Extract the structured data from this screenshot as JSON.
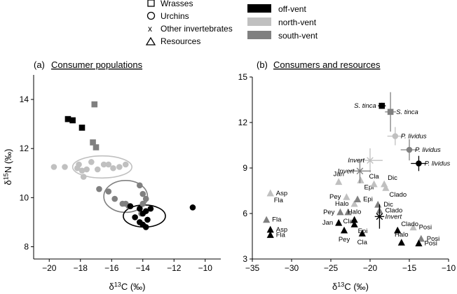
{
  "legend": {
    "shapes": [
      {
        "symbol": "square",
        "label": "Wrasses"
      },
      {
        "symbol": "circle",
        "label": "Urchins"
      },
      {
        "symbol": "cross",
        "label": "Other invertebrates"
      },
      {
        "symbol": "triangle",
        "label": "Resources"
      }
    ],
    "sites": [
      {
        "label": "off-vent",
        "color": "#000000"
      },
      {
        "label": "north-vent",
        "color": "#c0c0c0"
      },
      {
        "label": "south-vent",
        "color": "#808080"
      }
    ]
  },
  "colors": {
    "off": "#000000",
    "north": "#c0c0c0",
    "south": "#808080",
    "axis": "#000000"
  },
  "chart_data": [
    {
      "type": "scatter",
      "panel_label": "(a)",
      "title": "Consumer populations",
      "xlabel": "δ13C (‰)",
      "ylabel": "δ15N (‰)",
      "xlim": [
        -21,
        -9
      ],
      "ylim": [
        7.5,
        15
      ],
      "xticks": [
        -20,
        -18,
        -16,
        -14,
        -12,
        -10
      ],
      "yticks": [
        8,
        10,
        12,
        14
      ],
      "series": [
        {
          "name": "off-vent",
          "group": "off",
          "marker": "square",
          "points": [
            [
              -18.8,
              13.2
            ],
            [
              -18.5,
              13.15
            ],
            [
              -17.9,
              12.85
            ]
          ]
        },
        {
          "name": "south-vent",
          "group": "south",
          "marker": "square",
          "points": [
            [
              -17.1,
              13.8
            ],
            [
              -17.2,
              12.25
            ],
            [
              -17.0,
              12.05
            ]
          ]
        },
        {
          "name": "north-vent",
          "group": "north",
          "marker": "circle",
          "points": [
            [
              -19.7,
              11.25
            ],
            [
              -19.0,
              11.25
            ],
            [
              -18.2,
              11.2
            ],
            [
              -18.1,
              11.35
            ],
            [
              -17.9,
              11.1
            ],
            [
              -17.8,
              10.85
            ],
            [
              -17.6,
              11.15
            ],
            [
              -17.3,
              11.45
            ],
            [
              -16.9,
              11.15
            ],
            [
              -16.5,
              11.35
            ],
            [
              -16.2,
              11.35
            ],
            [
              -15.9,
              11.2
            ],
            [
              -15.5,
              11.25
            ],
            [
              -15.1,
              11.35
            ]
          ]
        },
        {
          "name": "south-vent",
          "group": "south",
          "marker": "circle",
          "points": [
            [
              -16.8,
              10.35
            ],
            [
              -16.2,
              10.25
            ],
            [
              -15.8,
              9.95
            ],
            [
              -15.3,
              9.75
            ],
            [
              -15.1,
              9.75
            ],
            [
              -14.9,
              9.65
            ],
            [
              -14.2,
              10.5
            ],
            [
              -14.0,
              10.15
            ],
            [
              -14.0,
              9.75
            ],
            [
              -14.1,
              9.35
            ],
            [
              -13.8,
              9.95
            ]
          ]
        },
        {
          "name": "off-vent",
          "group": "off",
          "marker": "circle",
          "points": [
            [
              -14.8,
              9.65
            ],
            [
              -14.5,
              9.2
            ],
            [
              -14.2,
              9.55
            ],
            [
              -14.0,
              9.35
            ],
            [
              -13.8,
              9.45
            ],
            [
              -13.7,
              9.1
            ],
            [
              -13.5,
              9.55
            ],
            [
              -14.2,
              9.0
            ],
            [
              -14.0,
              8.9
            ],
            [
              -13.8,
              8.8
            ],
            [
              -10.8,
              9.6
            ]
          ]
        }
      ],
      "ellipses": [
        {
          "group": "north",
          "cx": -16.6,
          "cy": 11.25,
          "rx": 1.9,
          "ry": 0.45
        },
        {
          "group": "south",
          "cx": -15.1,
          "cy": 10.05,
          "rx": 1.4,
          "ry": 0.65
        },
        {
          "group": "off",
          "cx": -13.9,
          "cy": 9.25,
          "rx": 1.35,
          "ry": 0.45
        }
      ]
    },
    {
      "type": "scatter",
      "panel_label": "(b)",
      "title": "Consumers and resources",
      "xlabel": "δ13C (‰)",
      "ylabel": "",
      "xlim": [
        -35,
        -10
      ],
      "ylim": [
        3,
        15
      ],
      "xticks": [
        -35,
        -30,
        -25,
        -20,
        -15,
        -10
      ],
      "yticks": [
        3,
        6,
        9,
        12,
        15
      ],
      "consumers": [
        {
          "label": "S. tinca",
          "italic": true,
          "group": "off",
          "marker": "square",
          "x": -18.5,
          "y": 13.1,
          "xerr": 0.5,
          "yerr": 0.2,
          "label_side": "left"
        },
        {
          "label": "S. tinca",
          "italic": true,
          "group": "south",
          "marker": "square",
          "x": -17.4,
          "y": 12.7,
          "xerr": 0.7,
          "yerr": 1.3,
          "label_side": "right"
        },
        {
          "label": "P. lividus",
          "italic": true,
          "group": "north",
          "marker": "circle",
          "x": -16.8,
          "y": 11.1,
          "xerr": 1.0,
          "yerr": 0.6,
          "label_side": "right"
        },
        {
          "label": "P. lividus",
          "italic": true,
          "group": "south",
          "marker": "circle",
          "x": -15.0,
          "y": 10.2,
          "xerr": 1.1,
          "yerr": 0.7,
          "label_side": "right"
        },
        {
          "label": "P. lividus",
          "italic": true,
          "group": "off",
          "marker": "circle",
          "x": -13.8,
          "y": 9.3,
          "xerr": 1.0,
          "yerr": 0.5,
          "label_side": "right"
        },
        {
          "label": "Invert",
          "italic": true,
          "group": "north",
          "marker": "cross",
          "x": -20.0,
          "y": 9.5,
          "xerr": 1.6,
          "yerr": 0.8,
          "label_side": "left"
        },
        {
          "label": "Invert",
          "italic": true,
          "group": "south",
          "marker": "cross",
          "x": -21.3,
          "y": 8.8,
          "xerr": 1.4,
          "yerr": 0.8,
          "label_side": "left"
        },
        {
          "label": "Invert",
          "italic": true,
          "group": "off",
          "marker": "cross",
          "x": -18.8,
          "y": 5.8,
          "xerr": 0.6,
          "yerr": 0.8,
          "label_side": "right"
        }
      ],
      "resources": [
        {
          "label": "Asp",
          "group": "north",
          "x": -32.7,
          "y": 7.35,
          "label_side": "right"
        },
        {
          "label": "Fla",
          "group": "north",
          "x": -32.7,
          "y": 7.35,
          "label_side": "below-right"
        },
        {
          "label": "Fla",
          "group": "south",
          "x": -33.2,
          "y": 5.6,
          "label_side": "right"
        },
        {
          "label": "Asp",
          "group": "off",
          "x": -32.7,
          "y": 4.95,
          "label_side": "right"
        },
        {
          "label": "Fla",
          "group": "off",
          "x": -32.7,
          "y": 4.6,
          "label_side": "right"
        },
        {
          "label": "Jan",
          "group": "north",
          "x": -24.0,
          "y": 8.1,
          "label_side": "above"
        },
        {
          "label": "Pey",
          "group": "north",
          "x": -23.0,
          "y": 7.1,
          "label_side": "left"
        },
        {
          "label": "Halo",
          "group": "north",
          "x": -22.0,
          "y": 6.65,
          "label_side": "left"
        },
        {
          "label": "Epi",
          "group": "north",
          "x": -21.2,
          "y": 8.2,
          "label_side": "below-right"
        },
        {
          "label": "Cla",
          "group": "north",
          "x": -19.5,
          "y": 7.95,
          "label_side": "above"
        },
        {
          "label": "Dic",
          "group": "north",
          "x": -18.2,
          "y": 7.95,
          "label_side": "above-right"
        },
        {
          "label": "Clado",
          "group": "north",
          "x": -18.0,
          "y": 7.7,
          "label_side": "below-right"
        },
        {
          "label": "Posi",
          "group": "north",
          "x": -14.5,
          "y": 5.1,
          "label_side": "right"
        },
        {
          "label": "Pey",
          "group": "south",
          "x": -23.8,
          "y": 6.1,
          "label_side": "left"
        },
        {
          "label": "Cla",
          "group": "south",
          "x": -22.8,
          "y": 6.1,
          "label_side": "below"
        },
        {
          "label": "Epi",
          "group": "south",
          "x": -21.6,
          "y": 6.95,
          "label_side": "right"
        },
        {
          "label": "Dic",
          "group": "south",
          "x": -19.0,
          "y": 6.6,
          "label_side": "right"
        },
        {
          "label": "Clado",
          "group": "south",
          "x": -18.8,
          "y": 6.2,
          "label_side": "right"
        },
        {
          "label": "Posi",
          "group": "south",
          "x": -13.5,
          "y": 4.35,
          "label_side": "right"
        },
        {
          "label": "Halo",
          "group": "off",
          "x": -22.0,
          "y": 5.6,
          "label_side": "above"
        },
        {
          "label": "Epi",
          "group": "off",
          "x": -22.0,
          "y": 5.3,
          "label_side": "below-right"
        },
        {
          "label": "Jan",
          "group": "off",
          "x": -24.0,
          "y": 5.4,
          "label_side": "left"
        },
        {
          "label": "Pey",
          "group": "off",
          "x": -23.3,
          "y": 4.9,
          "label_side": "below"
        },
        {
          "label": "Cla",
          "group": "off",
          "x": -21.0,
          "y": 4.7,
          "label_side": "below"
        },
        {
          "label": "Clado",
          "group": "off",
          "x": -16.5,
          "y": 4.9,
          "label_side": "above-right"
        },
        {
          "label": "Halo",
          "group": "off",
          "x": -16.0,
          "y": 4.1,
          "label_side": "above"
        },
        {
          "label": "Posi",
          "group": "off",
          "x": -13.8,
          "y": 4.05,
          "label_side": "right"
        }
      ]
    }
  ]
}
